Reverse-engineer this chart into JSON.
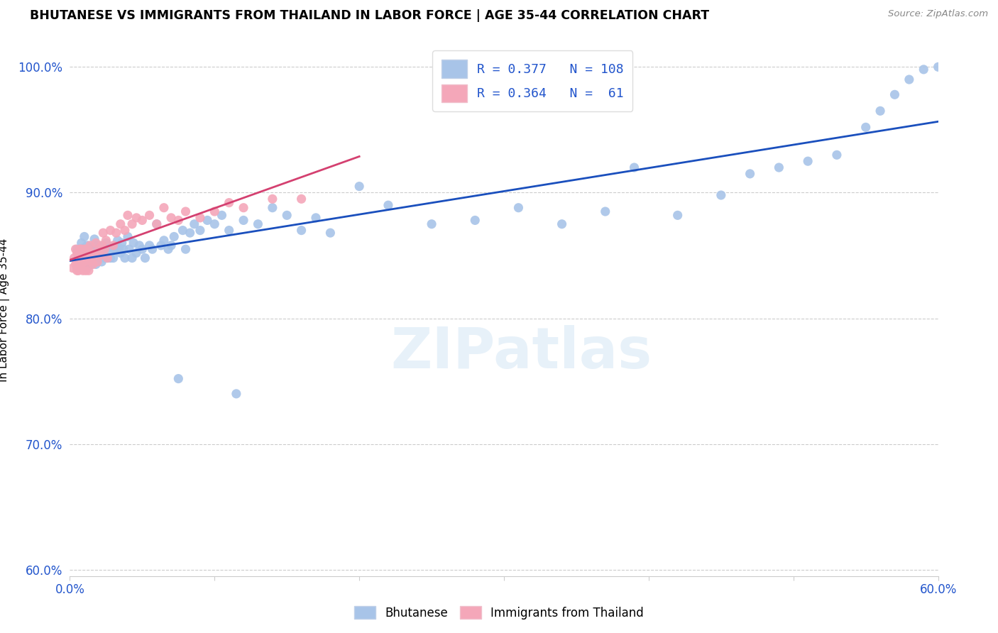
{
  "title": "BHUTANESE VS IMMIGRANTS FROM THAILAND IN LABOR FORCE | AGE 35-44 CORRELATION CHART",
  "source": "Source: ZipAtlas.com",
  "ylabel": "In Labor Force | Age 35-44",
  "x_min": 0.0,
  "x_max": 0.6,
  "y_min": 0.595,
  "y_max": 1.018,
  "x_ticks": [
    0.0,
    0.1,
    0.2,
    0.3,
    0.4,
    0.5,
    0.6
  ],
  "x_tick_labels": [
    "0.0%",
    "",
    "",
    "",
    "",
    "",
    "60.0%"
  ],
  "y_ticks": [
    0.6,
    0.7,
    0.8,
    0.9,
    1.0
  ],
  "y_tick_labels": [
    "60.0%",
    "70.0%",
    "80.0%",
    "90.0%",
    "100.0%"
  ],
  "blue_R": 0.377,
  "blue_N": 108,
  "pink_R": 0.364,
  "pink_N": 61,
  "blue_color": "#a8c4e8",
  "pink_color": "#f4a7b9",
  "blue_line_color": "#1a4fbd",
  "pink_line_color": "#d44070",
  "watermark": "ZIPatlas",
  "blue_scatter_x": [
    0.005,
    0.005,
    0.007,
    0.007,
    0.008,
    0.008,
    0.009,
    0.009,
    0.01,
    0.01,
    0.01,
    0.011,
    0.011,
    0.012,
    0.012,
    0.013,
    0.013,
    0.014,
    0.014,
    0.015,
    0.015,
    0.016,
    0.016,
    0.017,
    0.017,
    0.018,
    0.018,
    0.019,
    0.019,
    0.02,
    0.02,
    0.021,
    0.021,
    0.022,
    0.022,
    0.023,
    0.023,
    0.024,
    0.025,
    0.025,
    0.026,
    0.026,
    0.027,
    0.028,
    0.029,
    0.03,
    0.031,
    0.032,
    0.033,
    0.034,
    0.035,
    0.036,
    0.037,
    0.038,
    0.04,
    0.041,
    0.043,
    0.044,
    0.046,
    0.048,
    0.05,
    0.052,
    0.055,
    0.057,
    0.06,
    0.063,
    0.065,
    0.068,
    0.07,
    0.072,
    0.075,
    0.078,
    0.08,
    0.083,
    0.086,
    0.09,
    0.095,
    0.1,
    0.105,
    0.11,
    0.115,
    0.12,
    0.13,
    0.14,
    0.15,
    0.16,
    0.17,
    0.18,
    0.2,
    0.22,
    0.25,
    0.28,
    0.31,
    0.34,
    0.37,
    0.39,
    0.42,
    0.45,
    0.47,
    0.49,
    0.51,
    0.53,
    0.55,
    0.56,
    0.57,
    0.58,
    0.59,
    0.6
  ],
  "blue_scatter_y": [
    0.84,
    0.855,
    0.845,
    0.85,
    0.843,
    0.86,
    0.848,
    0.855,
    0.842,
    0.856,
    0.865,
    0.847,
    0.853,
    0.84,
    0.858,
    0.845,
    0.852,
    0.848,
    0.856,
    0.843,
    0.85,
    0.855,
    0.848,
    0.863,
    0.855,
    0.85,
    0.843,
    0.858,
    0.855,
    0.848,
    0.856,
    0.852,
    0.848,
    0.855,
    0.845,
    0.858,
    0.852,
    0.848,
    0.86,
    0.855,
    0.848,
    0.855,
    0.852,
    0.848,
    0.855,
    0.848,
    0.858,
    0.855,
    0.862,
    0.856,
    0.852,
    0.86,
    0.855,
    0.848,
    0.865,
    0.855,
    0.848,
    0.86,
    0.852,
    0.858,
    0.855,
    0.848,
    0.858,
    0.855,
    0.875,
    0.858,
    0.862,
    0.855,
    0.858,
    0.865,
    0.752,
    0.87,
    0.855,
    0.868,
    0.875,
    0.87,
    0.878,
    0.875,
    0.882,
    0.87,
    0.74,
    0.878,
    0.875,
    0.888,
    0.882,
    0.87,
    0.88,
    0.868,
    0.905,
    0.89,
    0.875,
    0.878,
    0.888,
    0.875,
    0.885,
    0.92,
    0.882,
    0.898,
    0.915,
    0.92,
    0.925,
    0.93,
    0.952,
    0.965,
    0.978,
    0.99,
    0.998,
    1.0
  ],
  "pink_scatter_x": [
    0.002,
    0.003,
    0.004,
    0.004,
    0.005,
    0.005,
    0.005,
    0.006,
    0.006,
    0.006,
    0.007,
    0.007,
    0.008,
    0.008,
    0.009,
    0.009,
    0.01,
    0.01,
    0.01,
    0.011,
    0.011,
    0.012,
    0.012,
    0.013,
    0.013,
    0.014,
    0.014,
    0.015,
    0.015,
    0.016,
    0.017,
    0.018,
    0.019,
    0.02,
    0.021,
    0.022,
    0.023,
    0.024,
    0.025,
    0.026,
    0.028,
    0.03,
    0.032,
    0.035,
    0.038,
    0.04,
    0.043,
    0.046,
    0.05,
    0.055,
    0.06,
    0.065,
    0.07,
    0.075,
    0.08,
    0.09,
    0.1,
    0.11,
    0.12,
    0.14,
    0.16
  ],
  "pink_scatter_y": [
    0.84,
    0.848,
    0.843,
    0.855,
    0.838,
    0.845,
    0.852,
    0.843,
    0.85,
    0.838,
    0.855,
    0.848,
    0.843,
    0.855,
    0.848,
    0.838,
    0.845,
    0.855,
    0.848,
    0.85,
    0.838,
    0.845,
    0.855,
    0.848,
    0.838,
    0.85,
    0.858,
    0.845,
    0.852,
    0.843,
    0.85,
    0.86,
    0.845,
    0.855,
    0.85,
    0.858,
    0.868,
    0.855,
    0.862,
    0.848,
    0.87,
    0.858,
    0.868,
    0.875,
    0.87,
    0.882,
    0.875,
    0.88,
    0.878,
    0.882,
    0.875,
    0.888,
    0.88,
    0.878,
    0.885,
    0.88,
    0.885,
    0.892,
    0.888,
    0.895,
    0.895
  ]
}
